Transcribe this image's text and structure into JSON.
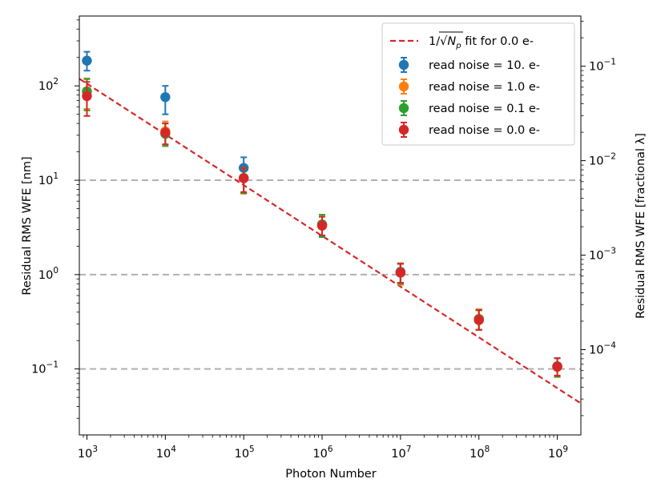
{
  "chart_data": {
    "type": "scatter",
    "x_scale": "log",
    "y_scale": "log",
    "xlabel": "Photon Number",
    "ylabel": "Residual RMS WFE [nm]",
    "ylabel_right": "Residual RMS WFE [fractional λ]",
    "xlim": [
      800,
      2000000000
    ],
    "ylim": [
      0.02,
      550
    ],
    "right_ylim": [
      1.25e-05,
      0.34
    ],
    "x_ticks": [
      {
        "value": 1000,
        "base": "10",
        "exp": "3"
      },
      {
        "value": 10000,
        "base": "10",
        "exp": "4"
      },
      {
        "value": 100000,
        "base": "10",
        "exp": "5"
      },
      {
        "value": 1000000,
        "base": "10",
        "exp": "6"
      },
      {
        "value": 10000000,
        "base": "10",
        "exp": "7"
      },
      {
        "value": 100000000,
        "base": "10",
        "exp": "8"
      },
      {
        "value": 1000000000,
        "base": "10",
        "exp": "9"
      }
    ],
    "y_ticks": [
      {
        "value": 0.1,
        "base": "10",
        "exp": "−1"
      },
      {
        "value": 1,
        "base": "10",
        "exp": "0"
      },
      {
        "value": 10,
        "base": "10",
        "exp": "1"
      },
      {
        "value": 100,
        "base": "10",
        "exp": "2"
      }
    ],
    "right_y_ticks": [
      {
        "value": 0.0001,
        "base": "10",
        "exp": "−4"
      },
      {
        "value": 0.001,
        "base": "10",
        "exp": "−3"
      },
      {
        "value": 0.01,
        "base": "10",
        "exp": "−2"
      },
      {
        "value": 0.1,
        "base": "10",
        "exp": "−1"
      }
    ],
    "reference_lines": [
      {
        "y": 10,
        "color": "#b0b0b0"
      },
      {
        "y": 1,
        "color": "#b0b0b0"
      },
      {
        "y": 0.1,
        "color": "#b0b0b0"
      }
    ],
    "fit_line": {
      "label": "fit for 0.0 e-",
      "color": "#d62728",
      "x": [
        800,
        2000000000
      ],
      "y": [
        119,
        0.0432
      ]
    },
    "series": [
      {
        "name": "read noise = 10. e-",
        "color": "#1f77b4",
        "x": [
          1000,
          10000,
          100000,
          1000000,
          10000000,
          100000000,
          1000000000
        ],
        "y": [
          185,
          76,
          13.5,
          3.4,
          1.07,
          0.34,
          0.107
        ],
        "err_low": [
          145,
          50,
          10.5,
          2.6,
          0.82,
          0.26,
          0.085
        ],
        "err_high": [
          230,
          100,
          17.5,
          4.3,
          1.32,
          0.42,
          0.13
        ]
      },
      {
        "name": "read noise = 1.0 e-",
        "color": "#ff7f0e",
        "x": [
          1000,
          10000,
          100000,
          1000000,
          10000000,
          100000000,
          1000000000
        ],
        "y": [
          88,
          33,
          10.5,
          3.35,
          1.05,
          0.34,
          0.105
        ],
        "err_low": [
          57,
          24,
          7.2,
          2.5,
          0.78,
          0.26,
          0.082
        ],
        "err_high": [
          120,
          42,
          13.5,
          4.3,
          1.32,
          0.43,
          0.13
        ]
      },
      {
        "name": "read noise = 0.1 e-",
        "color": "#2ca02c",
        "x": [
          1000,
          10000,
          100000,
          1000000,
          10000000,
          100000000,
          1000000000
        ],
        "y": [
          87,
          31,
          10.6,
          3.4,
          1.06,
          0.335,
          0.106
        ],
        "err_low": [
          55,
          23,
          7.3,
          2.5,
          0.8,
          0.26,
          0.083
        ],
        "err_high": [
          118,
          40,
          13.3,
          4.3,
          1.3,
          0.42,
          0.13
        ]
      },
      {
        "name": "read noise = 0.0 e-",
        "color": "#d62728",
        "x": [
          1000,
          10000,
          100000,
          1000000,
          10000000,
          100000000,
          1000000000
        ],
        "y": [
          78,
          32,
          10.5,
          3.3,
          1.05,
          0.33,
          0.106
        ],
        "err_low": [
          48,
          24,
          7.5,
          2.6,
          0.82,
          0.26,
          0.085
        ],
        "err_high": [
          110,
          40,
          13.5,
          4.1,
          1.3,
          0.42,
          0.13
        ]
      }
    ],
    "legend": {
      "position": "top-right",
      "fit_prefix": "1/",
      "fit_symbol": "N",
      "fit_subscript": "p",
      "fit_suffix": " fit for 0.0 e-"
    }
  }
}
